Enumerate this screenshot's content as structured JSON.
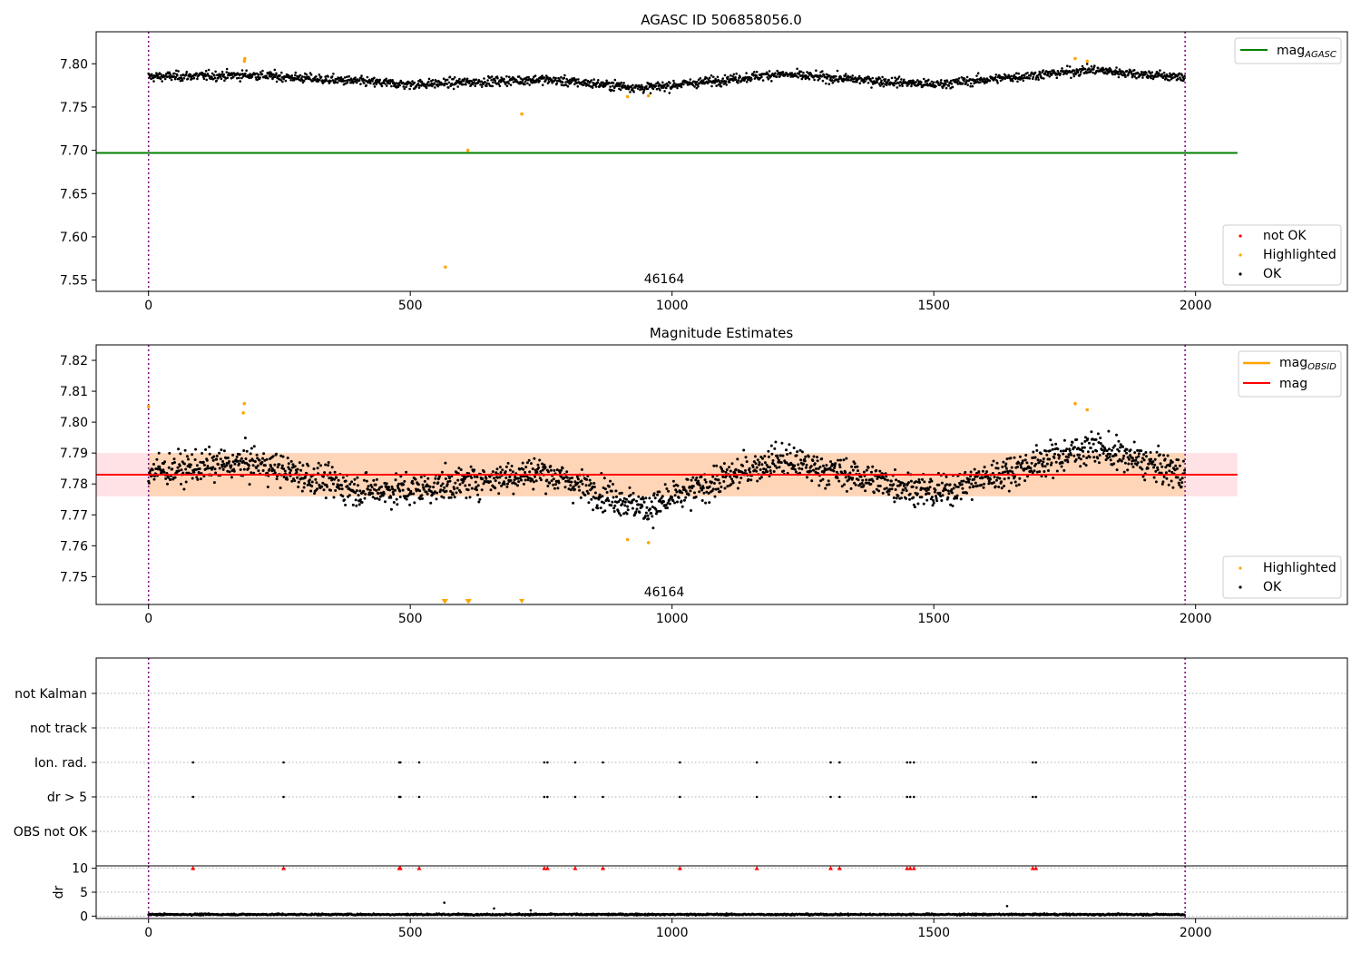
{
  "chart_data": [
    {
      "type": "scatter",
      "title": "AGASC ID 506858056.0",
      "xlabel": "",
      "ylabel": "",
      "xlim": [
        -100,
        2290
      ],
      "ylim": [
        7.537,
        7.837
      ],
      "xticks": [
        "0",
        "500",
        "1000",
        "1500",
        "2000"
      ],
      "yticks": [
        "7.55",
        "7.60",
        "7.65",
        "7.70",
        "7.75",
        "7.80"
      ],
      "obsid_label": "46164",
      "vlines_x": [
        0,
        1980
      ],
      "hline": {
        "name": "mag_AGASC",
        "y": 7.697,
        "x_range": [
          -100,
          2080
        ],
        "color": "#008000"
      },
      "legend_top": [
        {
          "label": "mag",
          "sub": "AGASC",
          "color": "#008000"
        }
      ],
      "legend_bottom": [
        {
          "label": "not OK",
          "color": "#ff0000"
        },
        {
          "label": "Highlighted",
          "color": "#ffa500"
        },
        {
          "label": "OK",
          "color": "#000000"
        }
      ],
      "ok_trend": {
        "x": [
          0,
          200,
          500,
          750,
          950,
          1200,
          1500,
          1800,
          1980
        ],
        "y": [
          7.785,
          7.787,
          7.776,
          7.782,
          7.772,
          7.788,
          7.776,
          7.793,
          7.784
        ],
        "n_points": 1980,
        "spread": 0.007
      },
      "highlighted": {
        "x": [
          183,
          184,
          567,
          610,
          713,
          915,
          955,
          1770,
          1793
        ],
        "y": [
          7.803,
          7.806,
          7.565,
          7.7,
          7.742,
          7.762,
          7.763,
          7.806,
          7.803
        ]
      }
    },
    {
      "type": "scatter",
      "title": "Magnitude Estimates",
      "xlabel": "",
      "ylabel": "",
      "xlim": [
        -100,
        2290
      ],
      "ylim": [
        7.741,
        7.825
      ],
      "xticks": [
        "0",
        "500",
        "1000",
        "1500",
        "2000"
      ],
      "yticks": [
        "7.75",
        "7.76",
        "7.77",
        "7.78",
        "7.79",
        "7.80",
        "7.81",
        "7.82"
      ],
      "obsid_label": "46164",
      "vlines_x": [
        0,
        1980
      ],
      "mag_line": {
        "y": 7.783,
        "x_range": [
          -100,
          2080
        ],
        "color": "#ff0000"
      },
      "band_outer": {
        "y": [
          7.776,
          7.79
        ],
        "x_range": [
          -100,
          2080
        ]
      },
      "band_inner": {
        "y": [
          7.776,
          7.79
        ],
        "x_range": [
          0,
          1980
        ]
      },
      "legend_top": [
        {
          "label": "mag",
          "sub": "OBSID",
          "color": "#ffa500"
        },
        {
          "label": "mag",
          "sub": "",
          "color": "#ff0000"
        }
      ],
      "legend_bottom": [
        {
          "label": "Highlighted",
          "color": "#ffa500"
        },
        {
          "label": "OK",
          "color": "#000000"
        }
      ],
      "ok_trend": {
        "x": [
          0,
          200,
          400,
          500,
          750,
          950,
          1200,
          1500,
          1800,
          1980
        ],
        "y": [
          7.784,
          7.787,
          7.778,
          7.778,
          7.784,
          7.772,
          7.788,
          7.777,
          7.792,
          7.783
        ],
        "n_points": 1980,
        "spread": 0.0065
      },
      "highlighted": {
        "x": [
          0,
          181,
          183,
          915,
          955,
          1770,
          1793
        ],
        "y": [
          7.805,
          7.803,
          7.806,
          7.762,
          7.761,
          7.806,
          7.804
        ]
      },
      "offscale_markers_x": [
        565,
        567,
        610,
        612,
        713
      ]
    },
    {
      "type": "scatter",
      "title": "",
      "xlim": [
        -100,
        2290
      ],
      "categories": [
        "not Kalman",
        "not track",
        "Ion. rad.",
        "dr > 5",
        "OBS not OK"
      ],
      "flag_x": [
        85,
        258,
        479,
        481,
        517,
        756,
        762,
        815,
        868,
        1015,
        1162,
        1303,
        1320,
        1449,
        1455,
        1462,
        1689,
        1695
      ],
      "flag_rows": [
        "Ion. rad.",
        "dr > 5"
      ]
    },
    {
      "type": "scatter",
      "title": "",
      "xlabel": "",
      "ylabel": "dr",
      "xlim": [
        -100,
        2290
      ],
      "ylim": [
        -0.5,
        10.5
      ],
      "xticks": [
        "0",
        "500",
        "1000",
        "1500",
        "2000"
      ],
      "yticks": [
        "0",
        "5",
        "10"
      ],
      "clipped_y": 10,
      "clipped_x": [
        85,
        258,
        479,
        481,
        517,
        756,
        762,
        815,
        868,
        1015,
        1162,
        1303,
        1320,
        1449,
        1455,
        1462,
        1689,
        1695
      ],
      "base_trend": {
        "x": [
          0,
          1980
        ],
        "y": [
          0.35,
          0.35
        ],
        "n_points": 1980,
        "spread": 0.2
      },
      "outliers": {
        "x": [
          565,
          660,
          730,
          1640
        ],
        "y": [
          2.8,
          1.6,
          1.2,
          2.1
        ]
      }
    }
  ]
}
